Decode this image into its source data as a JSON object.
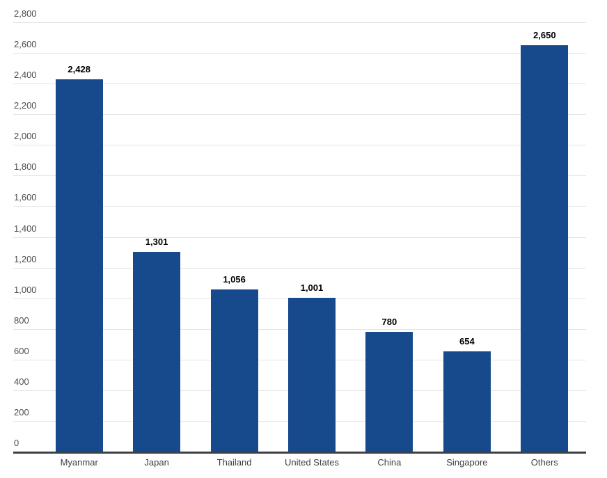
{
  "chart_data": {
    "type": "bar",
    "title": "",
    "xlabel": "",
    "ylabel": "",
    "categories": [
      "Myanmar",
      "Japan",
      "Thailand",
      "United States",
      "China",
      "Singapore",
      "Others"
    ],
    "values": [
      2428,
      1301,
      1056,
      1001,
      780,
      654,
      2650
    ],
    "value_labels": [
      "2,428",
      "1,301",
      "1,056",
      "1,001",
      "780",
      "654",
      "2,650"
    ],
    "y_axis": {
      "min": 0,
      "max": 2800,
      "tick_step": 200,
      "tick_labels": [
        "0",
        "200",
        "400",
        "600",
        "800",
        "1,000",
        "1,200",
        "1,400",
        "1,600",
        "1,800",
        "2,000",
        "2,200",
        "2,400",
        "2,600",
        "2,800"
      ]
    },
    "grid": true,
    "legend": "none",
    "colors": {
      "bar": "#164a8c",
      "grid_line": "#e4e4e4",
      "axis_line": "#3d4045",
      "tick_label": "#4d4d4d",
      "category_label": "#3f4042",
      "value_label": "#000000",
      "background": "#ffffff"
    }
  }
}
